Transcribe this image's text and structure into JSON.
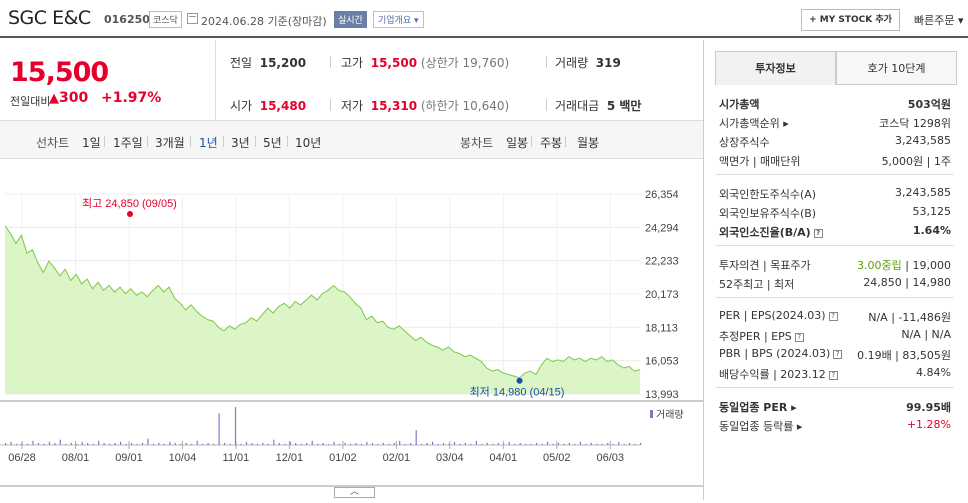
{
  "header": {
    "company": "SGC E&C",
    "code": "016250",
    "market": "코스닥",
    "date": "2024.06.28 기준(장마감)",
    "realtime": "실시간",
    "overview": "기업개요 ▾",
    "mystock": "+ MY STOCK 추가",
    "quick_order": "빠른주문 ▾"
  },
  "price": {
    "current": "15,500",
    "change_label": "전일대비",
    "change_arrow": "▲",
    "change": "300",
    "change_pct": "+1.97%"
  },
  "info": {
    "prev_label": "전일",
    "prev": "15,200",
    "high_label": "고가",
    "high": "15,500",
    "upper_limit": "(상한가 19,760)",
    "volume_label": "거래량",
    "volume": "319",
    "open_label": "시가",
    "open": "15,480",
    "low_label": "저가",
    "low": "15,310",
    "lower_limit": "(하한가 10,640)",
    "amount_label": "거래대금",
    "amount": "5 백만"
  },
  "tabs": {
    "line_chart": "선차트",
    "periods": [
      "1일",
      "1주일",
      "3개월",
      "1년",
      "3년",
      "5년",
      "10년"
    ],
    "active_period": "1년",
    "candle_chart": "봉차트",
    "candle_periods": [
      "일봉",
      "주봉",
      "월봉"
    ]
  },
  "chart_data": {
    "type": "area",
    "y_ticks": [
      "26,354",
      "24,294",
      "22,233",
      "20,173",
      "18,113",
      "16,053",
      "13,993"
    ],
    "ylim": [
      13993,
      26354
    ],
    "x_ticks": [
      "06/28",
      "08/01",
      "09/01",
      "10/04",
      "11/01",
      "12/01",
      "01/02",
      "02/01",
      "03/04",
      "04/01",
      "05/02",
      "06/03"
    ],
    "high_label": "최고 24,850 (09/05)",
    "low_label": "최저 14,980 (04/15)",
    "volume_legend": "거래량",
    "prices": [
      24400,
      23900,
      23300,
      23800,
      22700,
      22900,
      22100,
      21500,
      22200,
      21800,
      21300,
      21700,
      21000,
      21400,
      20800,
      21100,
      20500,
      20900,
      20400,
      20700,
      20300,
      20600,
      20200,
      20500,
      20100,
      20300,
      20000,
      20400,
      20700,
      20300,
      20600,
      19900,
      19600,
      19200,
      19500,
      19100,
      18800,
      18600,
      18500,
      18100,
      17900,
      18200,
      18000,
      18300,
      18400,
      18700,
      18500,
      18900,
      19300,
      19000,
      19400,
      19600,
      19300,
      19700,
      19500,
      19800,
      20100,
      19800,
      20200,
      20400,
      20700,
      20400,
      20300,
      20000,
      19600,
      19300,
      18600,
      18800,
      18400,
      18500,
      18100,
      18000,
      18200,
      17900,
      17600,
      17300,
      17500,
      17200,
      17000,
      16900,
      16700,
      16900,
      16600,
      16500,
      16300,
      16400,
      16200,
      16000,
      15600,
      15400,
      15500,
      15300,
      15200,
      15100,
      15000,
      15300,
      15400,
      15200,
      15800,
      16200,
      16000,
      16100,
      16000,
      16300,
      16100,
      16200,
      16000,
      16200,
      16100,
      16300,
      16000,
      16100,
      15800,
      15600,
      15700,
      15400,
      15500
    ],
    "volumes": [
      2,
      3,
      1,
      2,
      1,
      4,
      2,
      1,
      3,
      2,
      5,
      1,
      2,
      1,
      3,
      2,
      1,
      4,
      2,
      1,
      2,
      3,
      1,
      2,
      1,
      2,
      6,
      1,
      2,
      1,
      3,
      2,
      1,
      2,
      1,
      4,
      1,
      2,
      1,
      30,
      2,
      1,
      36,
      1,
      3,
      2,
      1,
      2,
      1,
      5,
      2,
      1,
      3,
      2,
      1,
      2,
      4,
      1,
      2,
      1,
      3,
      1,
      2,
      1,
      2,
      1,
      3,
      2,
      1,
      2,
      1,
      2,
      4,
      1,
      2,
      14,
      1,
      2,
      3,
      1,
      2,
      1,
      3,
      1,
      2,
      1,
      4,
      1,
      2,
      1,
      2,
      1,
      3,
      1,
      2,
      1,
      1,
      2,
      1,
      3,
      1,
      2,
      1,
      2,
      1,
      3,
      1,
      2,
      1,
      1,
      2,
      1,
      3,
      1,
      2,
      1,
      2
    ]
  },
  "right": {
    "tab_invest": "투자정보",
    "tab_quote": "호가 10단계",
    "rows1": [
      {
        "label": "시가총액",
        "value": "503억원",
        "bold": true
      },
      {
        "label": "시가총액순위 ▸",
        "value": "코스닥 1298위"
      },
      {
        "label": "상장주식수",
        "value": "3,243,585"
      },
      {
        "label": "액면가 | 매매단위",
        "value": "5,000원 | 1주"
      }
    ],
    "rows2": [
      {
        "label": "외국인한도주식수(A)",
        "value": "3,243,585"
      },
      {
        "label": "외국인보유주식수(B)",
        "value": "53,125"
      },
      {
        "label": "외국인소진율(B/A)",
        "value": "1.64%",
        "bold": true
      }
    ],
    "opinion_label": "투자의견 | 목표주가",
    "opinion": "3.00중립",
    "target": "19,000",
    "range_label": "52주최고 | 최저",
    "range": "24,850 | 14,980",
    "rows4": [
      {
        "label": "PER | EPS(2024.03)",
        "value": "N/A | -11,486원"
      },
      {
        "label": "추정PER | EPS",
        "value": "N/A | N/A"
      },
      {
        "label": "PBR | BPS (2024.03)",
        "value": "0.19배 | 83,505원"
      },
      {
        "label": "배당수익률 | 2023.12",
        "value": "4.84%"
      }
    ],
    "sector_per_label": "동일업종 PER ▸",
    "sector_per": "99.95배",
    "sector_chg_label": "동일업종 등락률 ▸",
    "sector_chg": "+1.28%",
    "colors": {
      "red": "#e4002b",
      "green": "#5ca300",
      "blue": "#1a4fa8"
    }
  },
  "handle": "︿"
}
